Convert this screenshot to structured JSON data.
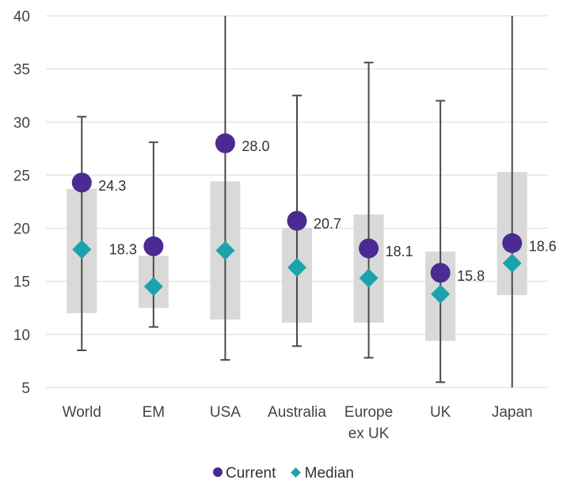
{
  "chart_data": {
    "type": "scatter",
    "title": "",
    "xlabel": "",
    "ylabel": "",
    "ylim": [
      5,
      40
    ],
    "yticks": [
      5,
      10,
      15,
      20,
      25,
      30,
      35,
      40
    ],
    "grid": true,
    "legend_position": "bottom",
    "categories": [
      "World",
      "EM",
      "USA",
      "Australia",
      "Europe ex UK",
      "UK",
      "Japan"
    ],
    "category_lines": [
      [
        "World"
      ],
      [
        "EM"
      ],
      [
        "USA"
      ],
      [
        "Australia"
      ],
      [
        "Europe",
        "ex UK"
      ],
      [
        "UK"
      ],
      [
        "Japan"
      ]
    ],
    "range": {
      "low": [
        8.5,
        10.7,
        7.6,
        8.9,
        7.8,
        5.5,
        5.0
      ],
      "high": [
        30.5,
        28.1,
        40.0,
        32.5,
        35.6,
        32.0,
        40.0
      ]
    },
    "band": {
      "low": [
        12.0,
        12.5,
        11.4,
        11.1,
        11.1,
        9.4,
        13.7
      ],
      "high": [
        23.7,
        17.4,
        24.4,
        20.0,
        21.3,
        17.8,
        25.3
      ]
    },
    "series": [
      {
        "name": "Current",
        "values": [
          24.3,
          18.3,
          28.0,
          20.7,
          18.1,
          15.8,
          18.6
        ],
        "labels": [
          "24.3",
          "18.3",
          "28.0",
          "20.7",
          "18.1",
          "15.8",
          "18.6"
        ],
        "color": "#4b2a91"
      },
      {
        "name": "Median",
        "values": [
          18.0,
          14.5,
          17.9,
          16.3,
          15.3,
          13.8,
          16.7
        ],
        "color": "#1ba3ad"
      }
    ],
    "label_side": [
      "right",
      "left",
      "right",
      "right",
      "right",
      "right",
      "right"
    ],
    "colors": {
      "band": "#d9d9d9",
      "whisker": "#4a4a4a",
      "grid": "#d9d9d9"
    }
  }
}
